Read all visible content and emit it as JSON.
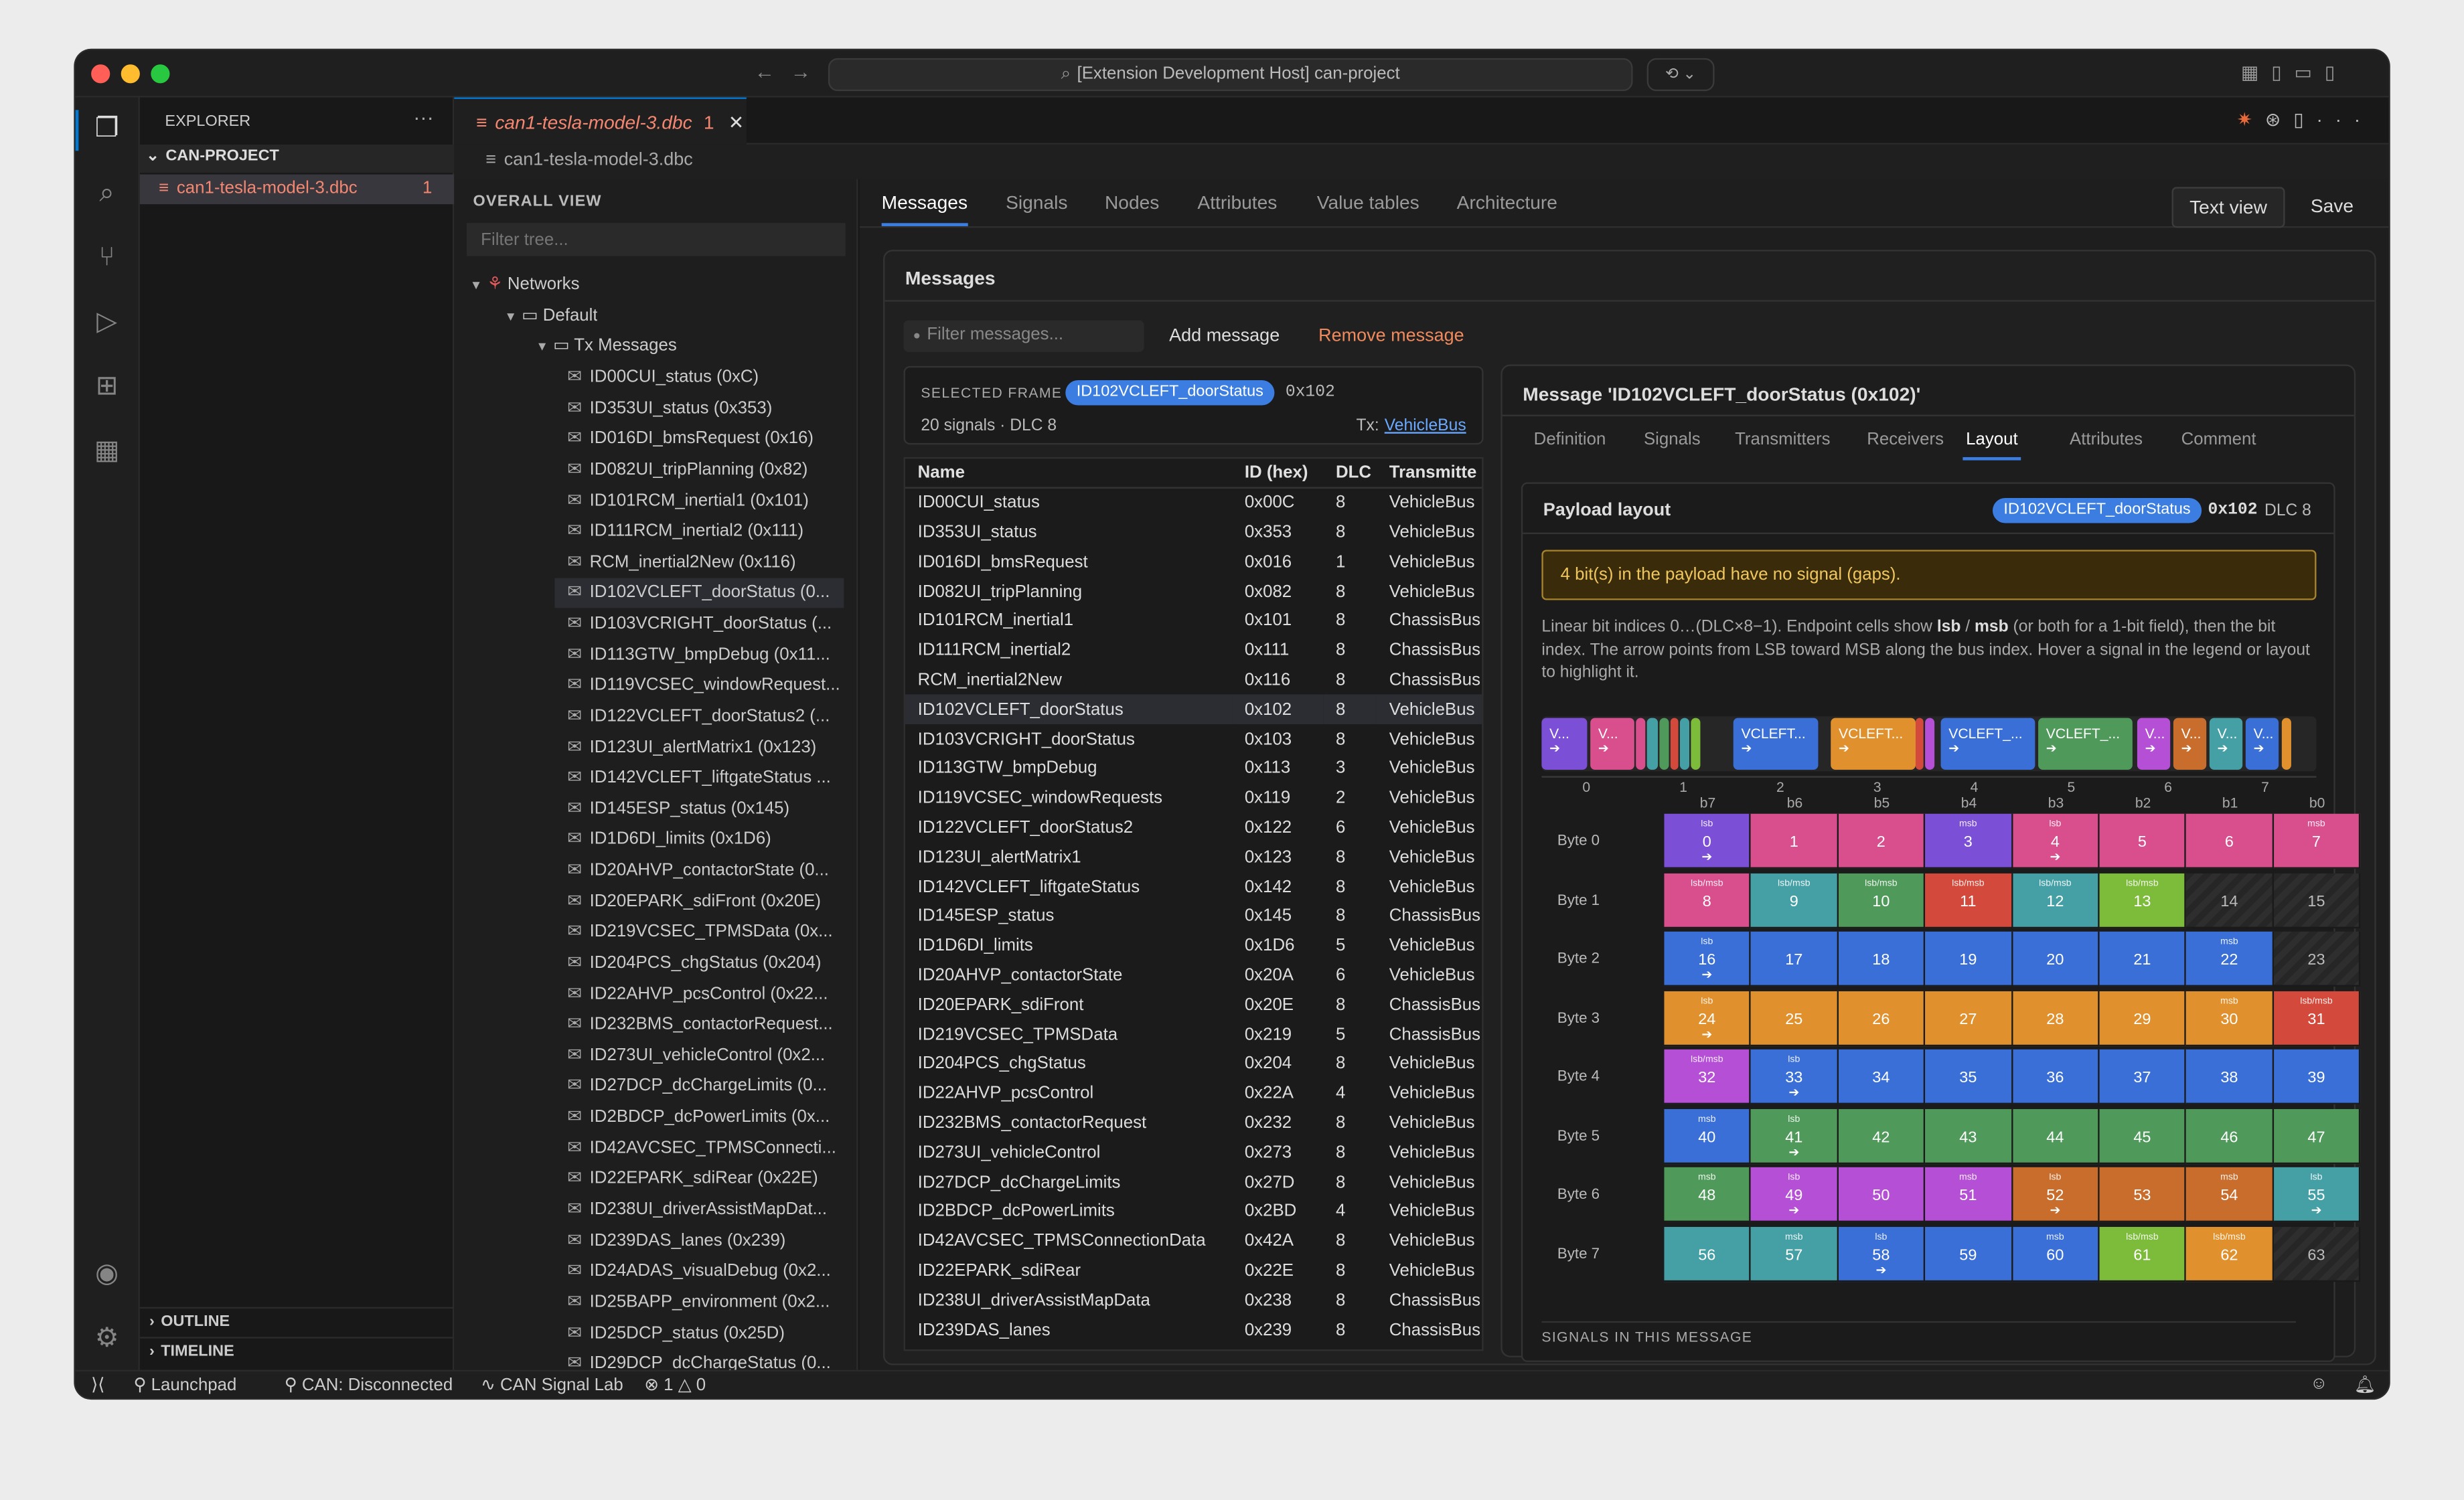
{
  "window": {
    "command_center": "[Extension Development Host] can-project"
  },
  "explorer": {
    "title": "EXPLORER",
    "folder": "CAN-PROJECT",
    "file": "can1-tesla-model-3.dbc",
    "file_badge": "1",
    "outline": "OUTLINE",
    "timeline": "TIMELINE"
  },
  "editor": {
    "tab_label": "can1-tesla-model-3.dbc",
    "tab_badge": "1",
    "breadcrumb": "can1-tesla-model-3.dbc"
  },
  "tree": {
    "title": "OVERALL VIEW",
    "filter_placeholder": "Filter tree...",
    "networks": "Networks",
    "default": "Default",
    "tx": "Tx Messages",
    "items": [
      "ID00CUI_status (0xC)",
      "ID353UI_status (0x353)",
      "ID016DI_bmsRequest (0x16)",
      "ID082UI_tripPlanning (0x82)",
      "ID101RCM_inertial1 (0x101)",
      "ID111RCM_inertial2 (0x111)",
      "RCM_inertial2New (0x116)",
      "ID102VCLEFT_doorStatus (0...",
      "ID103VCRIGHT_doorStatus (...",
      "ID113GTW_bmpDebug (0x11...",
      "ID119VCSEC_windowRequest...",
      "ID122VCLEFT_doorStatus2 (...",
      "ID123UI_alertMatrix1 (0x123)",
      "ID142VCLEFT_liftgateStatus ...",
      "ID145ESP_status (0x145)",
      "ID1D6DI_limits (0x1D6)",
      "ID20AHVP_contactorState (0...",
      "ID20EPARK_sdiFront (0x20E)",
      "ID219VCSEC_TPMSData (0x...",
      "ID204PCS_chgStatus (0x204)",
      "ID22AHVP_pcsControl (0x22...",
      "ID232BMS_contactorRequest...",
      "ID273UI_vehicleControl (0x2...",
      "ID27DCP_dcChargeLimits (0...",
      "ID2BDCP_dcPowerLimits (0x...",
      "ID42AVCSEC_TPMSConnecti...",
      "ID22EPARK_sdiRear (0x22E)",
      "ID238UI_driverAssistMapDat...",
      "ID239DAS_lanes (0x239)",
      "ID24ADAS_visualDebug (0x2...",
      "ID25BAPP_environment (0x2...",
      "ID25DCP_status (0x25D)",
      "ID29DCP_dcChargeStatus (0..."
    ]
  },
  "main": {
    "tabs": [
      "Messages",
      "Signals",
      "Nodes",
      "Attributes",
      "Value tables",
      "Architecture"
    ],
    "text_view": "Text view",
    "save": "Save",
    "section": "Messages",
    "filter_placeholder": "Filter messages...",
    "add": "Add message",
    "remove": "Remove message",
    "selected": {
      "label": "SELECTED FRAME",
      "name": "ID102VCLEFT_doorStatus",
      "id": "0x102",
      "meta": "20 signals · DLC 8",
      "tx_label": "Tx:",
      "tx": "VehicleBus"
    },
    "columns": [
      "Name",
      "ID (hex)",
      "DLC",
      "Transmitte"
    ],
    "rows": [
      [
        "ID00CUI_status",
        "0x00C",
        "8",
        "VehicleBus"
      ],
      [
        "ID353UI_status",
        "0x353",
        "8",
        "VehicleBus"
      ],
      [
        "ID016DI_bmsRequest",
        "0x016",
        "1",
        "VehicleBus"
      ],
      [
        "ID082UI_tripPlanning",
        "0x082",
        "8",
        "VehicleBus"
      ],
      [
        "ID101RCM_inertial1",
        "0x101",
        "8",
        "ChassisBus"
      ],
      [
        "ID111RCM_inertial2",
        "0x111",
        "8",
        "ChassisBus"
      ],
      [
        "RCM_inertial2New",
        "0x116",
        "8",
        "ChassisBus"
      ],
      [
        "ID102VCLEFT_doorStatus",
        "0x102",
        "8",
        "VehicleBus"
      ],
      [
        "ID103VCRIGHT_doorStatus",
        "0x103",
        "8",
        "VehicleBus"
      ],
      [
        "ID113GTW_bmpDebug",
        "0x113",
        "3",
        "VehicleBus"
      ],
      [
        "ID119VCSEC_windowRequests",
        "0x119",
        "2",
        "VehicleBus"
      ],
      [
        "ID122VCLEFT_doorStatus2",
        "0x122",
        "6",
        "VehicleBus"
      ],
      [
        "ID123UI_alertMatrix1",
        "0x123",
        "8",
        "VehicleBus"
      ],
      [
        "ID142VCLEFT_liftgateStatus",
        "0x142",
        "8",
        "VehicleBus"
      ],
      [
        "ID145ESP_status",
        "0x145",
        "8",
        "ChassisBus"
      ],
      [
        "ID1D6DI_limits",
        "0x1D6",
        "5",
        "VehicleBus"
      ],
      [
        "ID20AHVP_contactorState",
        "0x20A",
        "6",
        "VehicleBus"
      ],
      [
        "ID20EPARK_sdiFront",
        "0x20E",
        "8",
        "ChassisBus"
      ],
      [
        "ID219VCSEC_TPMSData",
        "0x219",
        "5",
        "ChassisBus"
      ],
      [
        "ID204PCS_chgStatus",
        "0x204",
        "8",
        "VehicleBus"
      ],
      [
        "ID22AHVP_pcsControl",
        "0x22A",
        "4",
        "VehicleBus"
      ],
      [
        "ID232BMS_contactorRequest",
        "0x232",
        "8",
        "VehicleBus"
      ],
      [
        "ID273UI_vehicleControl",
        "0x273",
        "8",
        "VehicleBus"
      ],
      [
        "ID27DCP_dcChargeLimits",
        "0x27D",
        "8",
        "VehicleBus"
      ],
      [
        "ID2BDCP_dcPowerLimits",
        "0x2BD",
        "4",
        "VehicleBus"
      ],
      [
        "ID42AVCSEC_TPMSConnectionData",
        "0x42A",
        "8",
        "VehicleBus"
      ],
      [
        "ID22EPARK_sdiRear",
        "0x22E",
        "8",
        "VehicleBus"
      ],
      [
        "ID238UI_driverAssistMapData",
        "0x238",
        "8",
        "ChassisBus"
      ],
      [
        "ID239DAS_lanes",
        "0x239",
        "8",
        "ChassisBus"
      ]
    ],
    "detail": {
      "title": "Message 'ID102VCLEFT_doorStatus (0x102)'",
      "tabs": [
        "Definition",
        "Signals",
        "Transmitters",
        "Receivers",
        "Layout",
        "Attributes",
        "Comment"
      ],
      "payload_title": "Payload layout",
      "chip": "ID102VCLEFT_doorStatus",
      "id": "0x102",
      "dlc": "DLC 8",
      "warning": "4 bit(s) in the payload have no signal (gaps).",
      "help_pre": "Linear bit indices 0…(DLC×8−1). Endpoint cells show ",
      "help_lsb": "lsb",
      "help_mid": " / ",
      "help_msb": "msb",
      "help_post": " (or both for a 1-bit field), then the bit index. The arrow points from LSB toward MSB along the bus index. Hover a signal in the legend or layout to highlight it.",
      "bit_cols": [
        "b7",
        "b6",
        "b5",
        "b4",
        "b3",
        "b2",
        "b1",
        "b0"
      ],
      "byte_labels": [
        "Byte 0",
        "Byte 1",
        "Byte 2",
        "Byte 3",
        "Byte 4",
        "Byte 5",
        "Byte 6",
        "Byte 7"
      ],
      "ruler": [
        "0",
        "1",
        "2",
        "3",
        "4",
        "5",
        "6",
        "7"
      ],
      "segments": [
        "V...",
        "V...",
        "",
        "",
        "",
        "",
        "",
        "",
        "VCLEFT...",
        "VCLEFT...",
        "",
        "",
        "VCLEFT_...",
        "VCLEFT_...",
        "V...",
        "V...",
        "V...",
        "V...",
        ""
      ],
      "arrow": "➔",
      "cut_text": "SIGNALS IN THIS MESSAGE"
    }
  },
  "colors": {
    "purple": "#7b4fd6",
    "pink": "#d94f8e",
    "green": "#4f9a5a",
    "red": "#d34a3c",
    "teal": "#45a0a5",
    "blue": "#3a6fd8",
    "orange": "#e0912d",
    "lime": "#7dbb3b",
    "magenta": "#b54fd6",
    "brown": "#c96d2d"
  },
  "layout_cells": [
    [
      [
        "purple",
        "lsb",
        "0",
        1
      ],
      [
        "pink",
        "",
        "1",
        0
      ],
      [
        "pink",
        "",
        "2",
        0
      ],
      [
        "purple",
        "msb",
        "3",
        0
      ],
      [
        "pink",
        "lsb",
        "4",
        1
      ],
      [
        "pink",
        "",
        "5",
        0
      ],
      [
        "pink",
        "",
        "6",
        0
      ],
      [
        "pink",
        "msb",
        "7",
        0
      ]
    ],
    [
      [
        "pink",
        "lsb/msb",
        "8",
        0
      ],
      [
        "teal",
        "lsb/msb",
        "9",
        0
      ],
      [
        "green",
        "lsb/msb",
        "10",
        0
      ],
      [
        "red",
        "lsb/msb",
        "11",
        0
      ],
      [
        "teal",
        "lsb/msb",
        "12",
        0
      ],
      [
        "lime",
        "lsb/msb",
        "13",
        0
      ],
      [
        "gap",
        "",
        "14",
        0
      ],
      [
        "gap",
        "",
        "15",
        0
      ]
    ],
    [
      [
        "blue",
        "lsb",
        "16",
        1
      ],
      [
        "blue",
        "",
        "17",
        0
      ],
      [
        "blue",
        "",
        "18",
        0
      ],
      [
        "blue",
        "",
        "19",
        0
      ],
      [
        "blue",
        "",
        "20",
        0
      ],
      [
        "blue",
        "",
        "21",
        0
      ],
      [
        "blue",
        "msb",
        "22",
        0
      ],
      [
        "gap",
        "",
        "23",
        0
      ]
    ],
    [
      [
        "orange",
        "lsb",
        "24",
        1
      ],
      [
        "orange",
        "",
        "25",
        0
      ],
      [
        "orange",
        "",
        "26",
        0
      ],
      [
        "orange",
        "",
        "27",
        0
      ],
      [
        "orange",
        "",
        "28",
        0
      ],
      [
        "orange",
        "",
        "29",
        0
      ],
      [
        "orange",
        "msb",
        "30",
        0
      ],
      [
        "red",
        "lsb/msb",
        "31",
        0
      ]
    ],
    [
      [
        "magenta",
        "lsb/msb",
        "32",
        0
      ],
      [
        "blue",
        "lsb",
        "33",
        1
      ],
      [
        "blue",
        "",
        "34",
        0
      ],
      [
        "blue",
        "",
        "35",
        0
      ],
      [
        "blue",
        "",
        "36",
        0
      ],
      [
        "blue",
        "",
        "37",
        0
      ],
      [
        "blue",
        "",
        "38",
        0
      ],
      [
        "blue",
        "",
        "39",
        0
      ]
    ],
    [
      [
        "blue",
        "msb",
        "40",
        0
      ],
      [
        "green",
        "lsb",
        "41",
        1
      ],
      [
        "green",
        "",
        "42",
        0
      ],
      [
        "green",
        "",
        "43",
        0
      ],
      [
        "green",
        "",
        "44",
        0
      ],
      [
        "green",
        "",
        "45",
        0
      ],
      [
        "green",
        "",
        "46",
        0
      ],
      [
        "green",
        "",
        "47",
        0
      ]
    ],
    [
      [
        "green",
        "msb",
        "48",
        0
      ],
      [
        "magenta",
        "lsb",
        "49",
        1
      ],
      [
        "magenta",
        "",
        "50",
        0
      ],
      [
        "magenta",
        "msb",
        "51",
        0
      ],
      [
        "brown",
        "lsb",
        "52",
        1
      ],
      [
        "brown",
        "",
        "53",
        0
      ],
      [
        "brown",
        "msb",
        "54",
        0
      ],
      [
        "teal",
        "lsb",
        "55",
        1
      ]
    ],
    [
      [
        "teal",
        "",
        "56",
        0
      ],
      [
        "teal",
        "msb",
        "57",
        0
      ],
      [
        "blue",
        "lsb",
        "58",
        1
      ],
      [
        "blue",
        "",
        "59",
        0
      ],
      [
        "blue",
        "msb",
        "60",
        0
      ],
      [
        "lime",
        "lsb/msb",
        "61",
        0
      ],
      [
        "orange",
        "lsb/msb",
        "62",
        0
      ],
      [
        "gap",
        "",
        "63",
        0
      ]
    ]
  ],
  "status": {
    "launchpad": "Launchpad",
    "can": "CAN: Disconnected",
    "lab": "CAN Signal Lab",
    "errors": "1",
    "warnings": "0"
  }
}
